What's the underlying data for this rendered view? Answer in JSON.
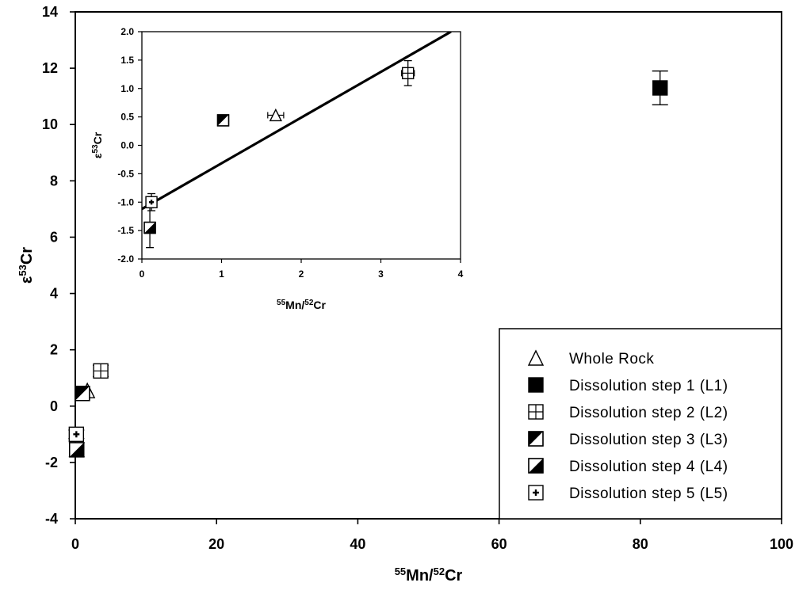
{
  "chart_data": [
    {
      "id": "main",
      "type": "scatter",
      "xlabel": {
        "sup": "55",
        "base1": "Mn/",
        "sup2": "52",
        "base2": "Cr"
      },
      "ylabel": {
        "prefix": "ε",
        "sup": "53",
        "base": "Cr"
      },
      "xlim": [
        0,
        100
      ],
      "ylim": [
        -4,
        14
      ],
      "xticks": [
        "0",
        "20",
        "40",
        "60",
        "80",
        "100"
      ],
      "yticks": [
        "-4",
        "-2",
        "0",
        "2",
        "4",
        "6",
        "8",
        "10",
        "12",
        "14"
      ],
      "grid": false,
      "legend_position": "bottom-right",
      "series": [
        {
          "name": "Whole Rock",
          "marker": "triangle-open",
          "points": [
            {
              "x": 1.7,
              "y": 0.55,
              "err": 0
            }
          ]
        },
        {
          "name": "Dissolution step 1 (L1)",
          "marker": "square-filled",
          "points": [
            {
              "x": 82.8,
              "y": 11.3,
              "err": 0.6
            }
          ]
        },
        {
          "name": "Dissolution step 2 (L2)",
          "marker": "square-grid",
          "points": [
            {
              "x": 3.6,
              "y": 1.25,
              "err": 0.2
            }
          ]
        },
        {
          "name": "Dissolution step 3 (L3)",
          "marker": "square-half-upper",
          "points": [
            {
              "x": 1.0,
              "y": 0.45,
              "err": 0
            }
          ]
        },
        {
          "name": "Dissolution step 4 (L4)",
          "marker": "square-half-lower",
          "points": [
            {
              "x": 0.2,
              "y": -1.55,
              "err": 0.25
            }
          ]
        },
        {
          "name": "Dissolution step 5 (L5)",
          "marker": "square-plus",
          "points": [
            {
              "x": 0.15,
              "y": -1.0,
              "err": 0.15
            }
          ]
        }
      ]
    },
    {
      "id": "inset",
      "type": "scatter",
      "xlabel": {
        "sup": "55",
        "base1": "Mn/",
        "sup2": "52",
        "base2": "Cr"
      },
      "ylabel": {
        "prefix": "ε",
        "sup": "53",
        "base": "Cr"
      },
      "xlim": [
        0,
        4
      ],
      "ylim": [
        -2,
        2
      ],
      "xticks": [
        "0",
        "1",
        "2",
        "3",
        "4"
      ],
      "yticks": [
        "-2.0",
        "-1.5",
        "-1.0",
        "-0.5",
        "0.0",
        "0.5",
        "1.0",
        "1.5",
        "2.0"
      ],
      "grid": false,
      "fit_line": {
        "x": [
          0,
          3.88
        ],
        "y": [
          -1.12,
          2.0
        ]
      },
      "series": [
        {
          "name": "Whole Rock",
          "marker": "triangle-open",
          "points": [
            {
              "x": 1.68,
              "y": 0.53,
              "xerr": 0.1,
              "err": 0
            }
          ]
        },
        {
          "name": "Dissolution step 2 (L2)",
          "marker": "square-grid",
          "points": [
            {
              "x": 3.34,
              "y": 1.27,
              "xerr": 0.08,
              "err": 0.22
            }
          ]
        },
        {
          "name": "Dissolution step 3 (L3)",
          "marker": "square-half-upper",
          "points": [
            {
              "x": 1.02,
              "y": 0.44,
              "xerr": 0,
              "err": 0
            }
          ]
        },
        {
          "name": "Dissolution step 4 (L4)",
          "marker": "square-half-lower",
          "points": [
            {
              "x": 0.1,
              "y": -1.45,
              "xerr": 0,
              "err": 0.35
            }
          ]
        },
        {
          "name": "Dissolution step 5 (L5)",
          "marker": "square-plus",
          "points": [
            {
              "x": 0.12,
              "y": -1.0,
              "xerr": 0,
              "err": 0.15
            }
          ]
        }
      ]
    }
  ]
}
